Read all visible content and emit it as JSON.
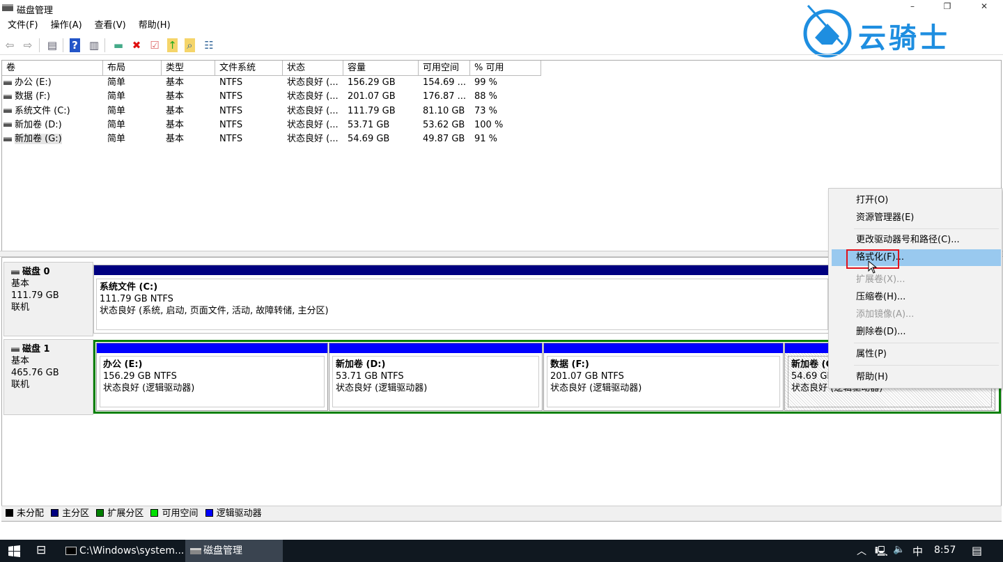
{
  "window": {
    "title": "磁盘管理",
    "minimize": "–",
    "restore": "❐",
    "close": "✕"
  },
  "watermark": {
    "text": "云骑士"
  },
  "menubar": [
    "文件(F)",
    "操作(A)",
    "查看(V)",
    "帮助(H)"
  ],
  "toolbar": {
    "icons": [
      "back-arrow",
      "forward-arrow",
      "show-hide-console-tree",
      "help",
      "show-action-pane",
      "connect-drive",
      "delete",
      "properties",
      "export",
      "search",
      "settings"
    ]
  },
  "volume_table": {
    "columns": [
      "卷",
      "布局",
      "类型",
      "文件系统",
      "状态",
      "容量",
      "可用空间",
      "% 可用"
    ],
    "rows": [
      [
        "办公 (E:)",
        "简单",
        "基本",
        "NTFS",
        "状态良好 (...",
        "156.29 GB",
        "154.69 ...",
        "99 %"
      ],
      [
        "数据 (F:)",
        "简单",
        "基本",
        "NTFS",
        "状态良好 (...",
        "201.07 GB",
        "176.87 ...",
        "88 %"
      ],
      [
        "系统文件 (C:)",
        "简单",
        "基本",
        "NTFS",
        "状态良好 (...",
        "111.79 GB",
        "81.10 GB",
        "73 %"
      ],
      [
        "新加卷 (D:)",
        "简单",
        "基本",
        "NTFS",
        "状态良好 (...",
        "53.71 GB",
        "53.62 GB",
        "100 %"
      ],
      [
        "新加卷 (G:)",
        "简单",
        "基本",
        "NTFS",
        "状态良好 (...",
        "54.69 GB",
        "49.87 GB",
        "91 %"
      ]
    ]
  },
  "disks": [
    {
      "name": "磁盘 0",
      "type": "基本",
      "size": "111.79 GB",
      "status": "联机",
      "partitions": [
        {
          "name": "系统文件 (C:)",
          "size": "111.79 GB NTFS",
          "status": "状态良好 (系统, 启动, 页面文件, 活动, 故障转储, 主分区)"
        }
      ]
    },
    {
      "name": "磁盘 1",
      "type": "基本",
      "size": "465.76 GB",
      "status": "联机",
      "partitions": [
        {
          "name": "办公 (E:)",
          "size": "156.29 GB NTFS",
          "status": "状态良好 (逻辑驱动器)"
        },
        {
          "name": "新加卷 (D:)",
          "size": "53.71 GB NTFS",
          "status": "状态良好 (逻辑驱动器)"
        },
        {
          "name": "数据 (F:)",
          "size": "201.07 GB NTFS",
          "status": "状态良好 (逻辑驱动器)"
        },
        {
          "name": "新加卷 (G:)",
          "size": "54.69 GB NTFS",
          "status": "状态良好 (逻辑驱动器)"
        }
      ]
    }
  ],
  "legend": [
    {
      "label": "未分配",
      "color": "#000000"
    },
    {
      "label": "主分区",
      "color": "#000080"
    },
    {
      "label": "扩展分区",
      "color": "#008000"
    },
    {
      "label": "可用空间",
      "color": "#00e000"
    },
    {
      "label": "逻辑驱动器",
      "color": "#0000ff"
    }
  ],
  "context_menu": {
    "items": [
      {
        "label": "打开(O)",
        "enabled": true
      },
      {
        "label": "资源管理器(E)",
        "enabled": true
      },
      {
        "label": "更改驱动器号和路径(C)...",
        "enabled": true
      },
      {
        "label": "格式化(F)...",
        "enabled": true,
        "highlighted": true
      },
      {
        "label": "扩展卷(X)...",
        "enabled": false
      },
      {
        "label": "压缩卷(H)...",
        "enabled": true
      },
      {
        "label": "添加镜像(A)...",
        "enabled": false
      },
      {
        "label": "删除卷(D)...",
        "enabled": true
      },
      {
        "label": "属性(P)",
        "enabled": true
      },
      {
        "label": "帮助(H)",
        "enabled": true
      }
    ]
  },
  "taskbar": {
    "tasks": [
      "C:\\Windows\\system...",
      "磁盘管理"
    ],
    "ime": "中",
    "time": "8:57"
  }
}
